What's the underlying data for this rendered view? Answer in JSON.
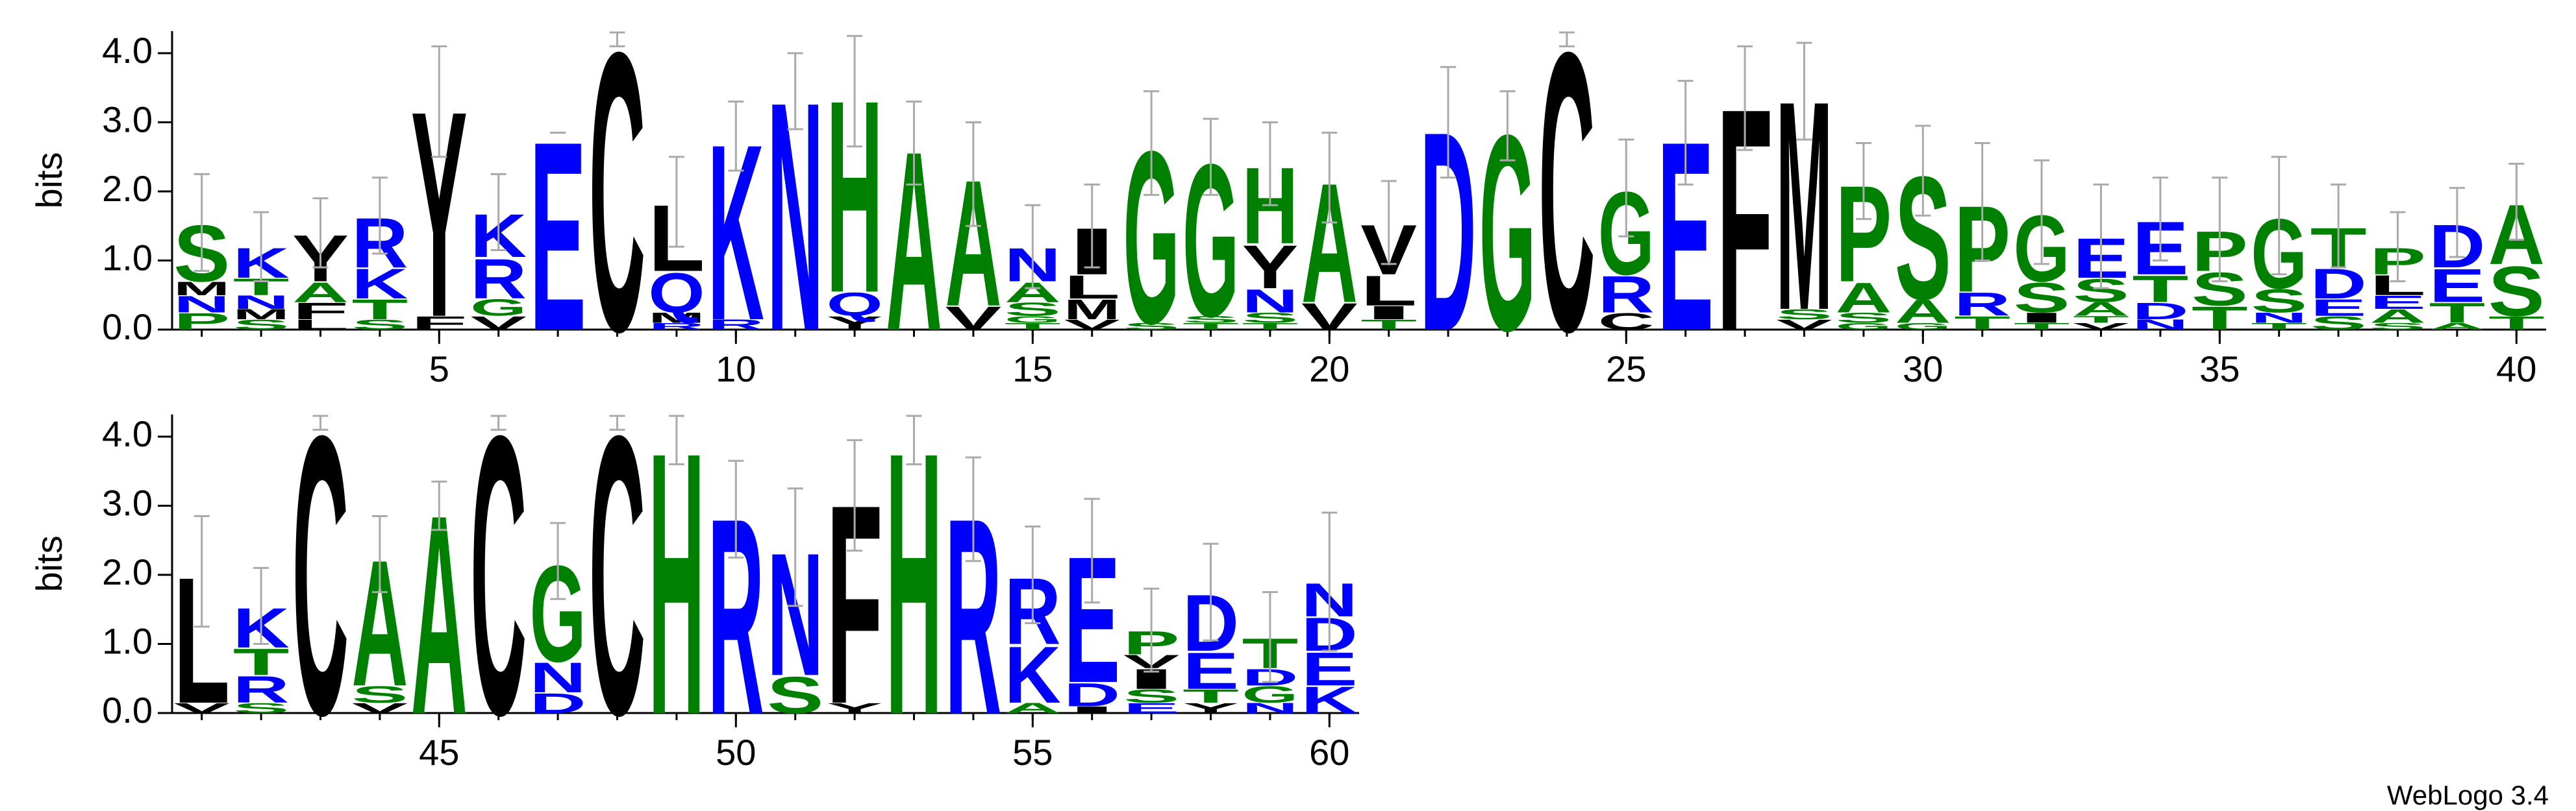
{
  "chart_data": [
    {
      "type": "logo",
      "ylabel": "bits",
      "xlim": [
        0.5,
        40.5
      ],
      "ylim": [
        0,
        4.32
      ],
      "yticks": [
        {
          "value": 0,
          "label": "0.0"
        },
        {
          "value": 1,
          "label": "1.0"
        },
        {
          "value": 2,
          "label": "2.0"
        },
        {
          "value": 3,
          "label": "3.0"
        },
        {
          "value": 4,
          "label": "4.0"
        }
      ],
      "xticks": [
        5,
        10,
        15,
        20,
        25,
        30,
        35,
        40
      ],
      "x": [
        1,
        2,
        3,
        4,
        5,
        6,
        7,
        8,
        9,
        10,
        11,
        12,
        13,
        14,
        15,
        16,
        17,
        18,
        19,
        20,
        21,
        22,
        23,
        24,
        25,
        26,
        27,
        28,
        29,
        30,
        31,
        32,
        33,
        34,
        35,
        36,
        37,
        38,
        39,
        40
      ],
      "stacks": [
        {
          "letters": [
            "P",
            "N",
            "M",
            "S"
          ],
          "bits": [
            0.25,
            0.25,
            0.2,
            0.85
          ],
          "error": 0.7
        },
        {
          "letters": [
            "S",
            "M",
            "N",
            "T",
            "K"
          ],
          "bits": [
            0.15,
            0.15,
            0.2,
            0.25,
            0.45
          ],
          "error": 0.5
        },
        {
          "letters": [
            "L",
            "F",
            "A",
            "Y"
          ],
          "bits": [
            0.15,
            0.25,
            0.3,
            0.7
          ],
          "error": 0.5
        },
        {
          "letters": [
            "S",
            "T",
            "K",
            "R"
          ],
          "bits": [
            0.15,
            0.3,
            0.45,
            0.75
          ],
          "error": 0.55
        },
        {
          "letters": [
            "F",
            "Y"
          ],
          "bits": [
            0.2,
            3.1
          ],
          "error": 0.8
        },
        {
          "letters": [
            "V",
            "G",
            "R",
            "K"
          ],
          "bits": [
            0.2,
            0.25,
            0.6,
            0.65
          ],
          "error": 0.55
        },
        {
          "letters": [
            "E"
          ],
          "bits": [
            2.85
          ],
          "error": 0
        },
        {
          "letters": [
            "C"
          ],
          "bits": [
            4.2
          ],
          "error": 0.1
        },
        {
          "letters": [
            "R",
            "M",
            "Q",
            "L"
          ],
          "bits": [
            0.1,
            0.15,
            0.6,
            1.0
          ],
          "error": 0.65
        },
        {
          "letters": [
            "R",
            "K"
          ],
          "bits": [
            0.15,
            2.65
          ],
          "error": 0.5
        },
        {
          "letters": [
            "N"
          ],
          "bits": [
            3.45
          ],
          "error": 0.55
        },
        {
          "letters": [
            "Y",
            "Q",
            "H"
          ],
          "bits": [
            0.2,
            0.35,
            2.9
          ],
          "error": 0.8
        },
        {
          "letters": [
            "A"
          ],
          "bits": [
            2.7
          ],
          "error": 0.6
        },
        {
          "letters": [
            "V",
            "A"
          ],
          "bits": [
            0.35,
            1.9
          ],
          "error": 0.75
        },
        {
          "letters": [
            "T",
            "G",
            "S",
            "A",
            "N"
          ],
          "bits": [
            0.1,
            0.1,
            0.2,
            0.3,
            0.5
          ],
          "error": 0.6
        },
        {
          "letters": [
            "V",
            "M",
            "L",
            "I"
          ],
          "bits": [
            0.15,
            0.3,
            0.35,
            0.7
          ],
          "error": 0.6
        },
        {
          "letters": [
            "S",
            "G"
          ],
          "bits": [
            0.1,
            2.6
          ],
          "error": 0.75
        },
        {
          "letters": [
            "T",
            "S",
            "G"
          ],
          "bits": [
            0.1,
            0.1,
            2.3
          ],
          "error": 0.55
        },
        {
          "letters": [
            "T",
            "S",
            "N",
            "Y",
            "H"
          ],
          "bits": [
            0.1,
            0.15,
            0.35,
            0.65,
            1.15
          ],
          "error": 0.6
        },
        {
          "letters": [
            "V",
            "A"
          ],
          "bits": [
            0.4,
            1.8
          ],
          "error": 0.65
        },
        {
          "letters": [
            "T",
            "I",
            "L",
            "V"
          ],
          "bits": [
            0.15,
            0.2,
            0.45,
            0.75
          ],
          "error": 0.6
        },
        {
          "letters": [
            "D"
          ],
          "bits": [
            3.0
          ],
          "error": 0.8
        },
        {
          "letters": [
            "G"
          ],
          "bits": [
            2.95
          ],
          "error": 0.5
        },
        {
          "letters": [
            "C"
          ],
          "bits": [
            4.2
          ],
          "error": 0.1
        },
        {
          "letters": [
            "C",
            "R",
            "G"
          ],
          "bits": [
            0.25,
            0.55,
            1.25
          ],
          "error": 0.7
        },
        {
          "letters": [
            "E"
          ],
          "bits": [
            2.85
          ],
          "error": 0.75
        },
        {
          "letters": [
            "F"
          ],
          "bits": [
            3.35
          ],
          "error": 0.75
        },
        {
          "letters": [
            "V",
            "S",
            "M"
          ],
          "bits": [
            0.15,
            0.15,
            3.15
          ],
          "error": 0.7
        },
        {
          "letters": [
            "G",
            "S",
            "A",
            "P"
          ],
          "bits": [
            0.1,
            0.15,
            0.45,
            1.45
          ],
          "error": 0.55
        },
        {
          "letters": [
            "G",
            "A",
            "S"
          ],
          "bits": [
            0.1,
            0.35,
            1.85
          ],
          "error": 0.65
        },
        {
          "letters": [
            "T",
            "R",
            "P"
          ],
          "bits": [
            0.2,
            0.35,
            1.3
          ],
          "error": 0.85
        },
        {
          "letters": [
            "T",
            "I",
            "S",
            "G"
          ],
          "bits": [
            0.1,
            0.15,
            0.45,
            1.0
          ],
          "error": 0.75
        },
        {
          "letters": [
            "V",
            "T",
            "A",
            "S",
            "E"
          ],
          "bits": [
            0.1,
            0.1,
            0.2,
            0.35,
            0.6
          ],
          "error": 0.75
        },
        {
          "letters": [
            "N",
            "D",
            "T",
            "E"
          ],
          "bits": [
            0.15,
            0.25,
            0.4,
            0.8
          ],
          "error": 0.6
        },
        {
          "letters": [
            "T",
            "S",
            "P"
          ],
          "bits": [
            0.35,
            0.5,
            0.6
          ],
          "error": 0.75
        },
        {
          "letters": [
            "T",
            "N",
            "S",
            "G"
          ],
          "bits": [
            0.1,
            0.15,
            0.35,
            1.05
          ],
          "error": 0.85
        },
        {
          "letters": [
            "S",
            "E",
            "D",
            "T"
          ],
          "bits": [
            0.2,
            0.25,
            0.45,
            0.6
          ],
          "error": 0.6
        },
        {
          "letters": [
            "S",
            "A",
            "E",
            "L",
            "P"
          ],
          "bits": [
            0.1,
            0.2,
            0.2,
            0.3,
            0.4
          ],
          "error": 0.5
        },
        {
          "letters": [
            "A",
            "T",
            "E",
            "D"
          ],
          "bits": [
            0.1,
            0.3,
            0.5,
            0.65
          ],
          "error": 0.5
        },
        {
          "letters": [
            "T",
            "S",
            "A"
          ],
          "bits": [
            0.2,
            0.75,
            0.9
          ],
          "error": 0.55
        }
      ]
    },
    {
      "type": "logo",
      "ylabel": "bits",
      "xlim": [
        40.5,
        60.5
      ],
      "ylim": [
        0,
        4.32
      ],
      "yticks": [
        {
          "value": 0,
          "label": "0.0"
        },
        {
          "value": 1,
          "label": "1.0"
        },
        {
          "value": 2,
          "label": "2.0"
        },
        {
          "value": 3,
          "label": "3.0"
        },
        {
          "value": 4,
          "label": "4.0"
        }
      ],
      "xticks": [
        45,
        50,
        55,
        60
      ],
      "x": [
        41,
        42,
        43,
        44,
        45,
        46,
        47,
        48,
        49,
        50,
        51,
        52,
        53,
        54,
        55,
        56,
        57,
        58,
        59,
        60
      ],
      "stacks": [
        {
          "letters": [
            "V",
            "L"
          ],
          "bits": [
            0.15,
            1.9
          ],
          "error": 0.8
        },
        {
          "letters": [
            "S",
            "R",
            "T",
            "K"
          ],
          "bits": [
            0.15,
            0.4,
            0.4,
            0.6
          ],
          "error": 0.55
        },
        {
          "letters": [
            "C"
          ],
          "bits": [
            4.2
          ],
          "error": 0.1
        },
        {
          "letters": [
            "V",
            "S",
            "A"
          ],
          "bits": [
            0.15,
            0.25,
            1.9
          ],
          "error": 0.55
        },
        {
          "letters": [
            "A"
          ],
          "bits": [
            3.0
          ],
          "error": 0.35
        },
        {
          "letters": [
            "C"
          ],
          "bits": [
            4.2
          ],
          "error": 0.1
        },
        {
          "letters": [
            "D",
            "N",
            "G"
          ],
          "bits": [
            0.3,
            0.45,
            1.45
          ],
          "error": 0.55
        },
        {
          "letters": [
            "C"
          ],
          "bits": [
            4.2
          ],
          "error": 0.1
        },
        {
          "letters": [
            "H"
          ],
          "bits": [
            3.95
          ],
          "error": 0.35
        },
        {
          "letters": [
            "R"
          ],
          "bits": [
            2.95
          ],
          "error": 0.7
        },
        {
          "letters": [
            "S",
            "N"
          ],
          "bits": [
            0.55,
            1.85
          ],
          "error": 0.85
        },
        {
          "letters": [
            "Y",
            "F"
          ],
          "bits": [
            0.15,
            3.0
          ],
          "error": 0.8
        },
        {
          "letters": [
            "H"
          ],
          "bits": [
            3.95
          ],
          "error": 0.35
        },
        {
          "letters": [
            "R"
          ],
          "bits": [
            2.95
          ],
          "error": 0.75
        },
        {
          "letters": [
            "A",
            "K",
            "R"
          ],
          "bits": [
            0.15,
            0.85,
            1.0
          ],
          "error": 0.7
        },
        {
          "letters": [
            "I",
            "D",
            "E"
          ],
          "bits": [
            0.1,
            0.35,
            1.9
          ],
          "error": 0.75
        },
        {
          "letters": [
            "E",
            "S",
            "I",
            "V",
            "P"
          ],
          "bits": [
            0.15,
            0.2,
            0.3,
            0.2,
            0.35
          ],
          "error": 0.6
        },
        {
          "letters": [
            "Y",
            "T",
            "E",
            "D"
          ],
          "bits": [
            0.15,
            0.2,
            0.55,
            0.85
          ],
          "error": 0.7
        },
        {
          "letters": [
            "N",
            "G",
            "D",
            "T"
          ],
          "bits": [
            0.15,
            0.25,
            0.25,
            0.45
          ],
          "error": 0.65
        },
        {
          "letters": [
            "K",
            "E",
            "D",
            "N"
          ],
          "bits": [
            0.4,
            0.5,
            0.5,
            0.5
          ],
          "error": 1.0
        }
      ]
    }
  ],
  "color_groups": [
    {
      "color": "#0000ff",
      "letters": "RKDENQ"
    },
    {
      "color": "#008000",
      "letters": "SGHTAP"
    },
    {
      "color": "#000000",
      "letters": "YVMCLFIW"
    }
  ],
  "error_color": "#aaaaaa",
  "credit": "WebLogo 3.4"
}
